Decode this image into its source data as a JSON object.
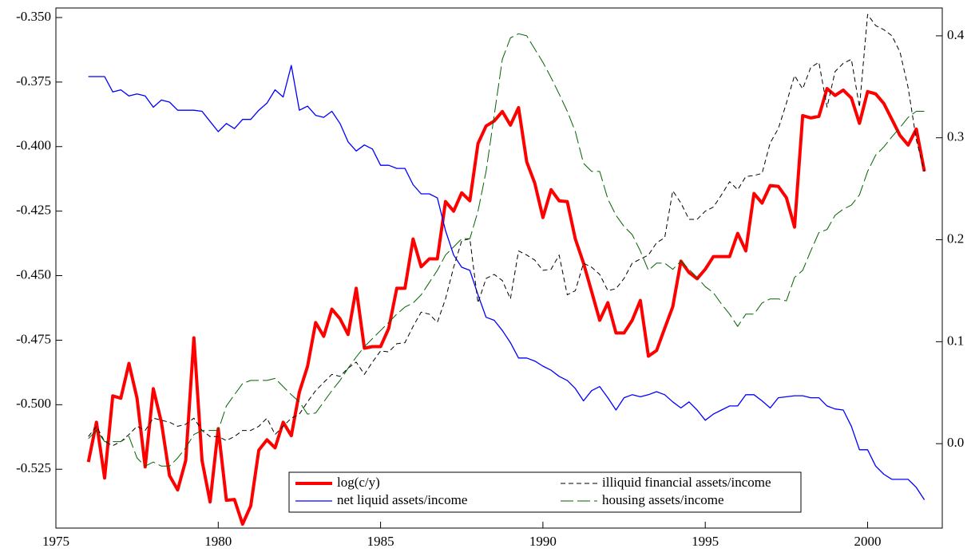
{
  "chart_data": {
    "type": "line",
    "x": [
      1976,
      1976.25,
      1976.5,
      1976.75,
      1977,
      1977.25,
      1977.5,
      1977.75,
      1978,
      1978.25,
      1978.5,
      1978.75,
      1979,
      1979.25,
      1979.5,
      1979.75,
      1980,
      1980.25,
      1980.5,
      1980.75,
      1981,
      1981.25,
      1981.5,
      1981.75,
      1982,
      1982.25,
      1982.5,
      1982.75,
      1983,
      1983.25,
      1983.5,
      1983.75,
      1984,
      1984.25,
      1984.5,
      1984.75,
      1985,
      1985.25,
      1985.5,
      1985.75,
      1986,
      1986.25,
      1986.5,
      1986.75,
      1987,
      1987.25,
      1987.5,
      1987.75,
      1988,
      1988.25,
      1988.5,
      1988.75,
      1989,
      1989.25,
      1989.5,
      1989.75,
      1990,
      1990.25,
      1990.5,
      1990.75,
      1991,
      1991.25,
      1991.5,
      1991.75,
      1992,
      1992.25,
      1992.5,
      1992.75,
      1993,
      1993.25,
      1993.5,
      1993.75,
      1994,
      1994.25,
      1994.5,
      1994.75,
      1995,
      1995.25,
      1995.5,
      1995.75,
      1996,
      1996.25,
      1996.5,
      1996.75,
      1997,
      1997.25,
      1997.5,
      1997.75,
      1998,
      1998.25,
      1998.5,
      1998.75,
      1999,
      1999.25,
      1999.5,
      1999.75,
      2000,
      2000.25,
      2000.5,
      2000.75,
      2001,
      2001.25,
      2001.5,
      2001.75
    ],
    "series": [
      {
        "name": "log(c/y)",
        "color": "#ff0000",
        "width": 4,
        "style": "solid",
        "axis": "y",
        "values": [
          -0.5222,
          -0.5068,
          -0.5284,
          -0.4966,
          -0.4975,
          -0.484,
          -0.4975,
          -0.5241,
          -0.4938,
          -0.5068,
          -0.5275,
          -0.533,
          -0.5216,
          -0.4741,
          -0.5216,
          -0.5377,
          -0.5093,
          -0.537,
          -0.5367,
          -0.5463,
          -0.5392,
          -0.5176,
          -0.5136,
          -0.5167,
          -0.5068,
          -0.512,
          -0.4951,
          -0.4852,
          -0.4682,
          -0.4735,
          -0.463,
          -0.4667,
          -0.4728,
          -0.4549,
          -0.4781,
          -0.4775,
          -0.4775,
          -0.4704,
          -0.4549,
          -0.4549,
          -0.4358,
          -0.4466,
          -0.4435,
          -0.4435,
          -0.4213,
          -0.425,
          -0.4179,
          -0.421,
          -0.3988,
          -0.392,
          -0.3901,
          -0.3864,
          -0.3917,
          -0.3849,
          -0.4059,
          -0.4142,
          -0.4275,
          -0.4167,
          -0.421,
          -0.4213,
          -0.4358,
          -0.4451,
          -0.4562,
          -0.4673,
          -0.4605,
          -0.4722,
          -0.4722,
          -0.4673,
          -0.4596,
          -0.4812,
          -0.479,
          -0.4704,
          -0.462,
          -0.4444,
          -0.4488,
          -0.4512,
          -0.4475,
          -0.4426,
          -0.4426,
          -0.4426,
          -0.4336,
          -0.4404,
          -0.4182,
          -0.4219,
          -0.4151,
          -0.4154,
          -0.4198,
          -0.4312,
          -0.388,
          -0.3889,
          -0.3883,
          -0.3775,
          -0.3802,
          -0.3781,
          -0.3812,
          -0.391,
          -0.3787,
          -0.3796,
          -0.3833,
          -0.3895,
          -0.3957,
          -0.3994,
          -0.3932,
          -0.4096
        ]
      },
      {
        "name": "net liquid assets/income",
        "color": "#0000ff",
        "width": 1.3,
        "style": "solid",
        "axis": "y2",
        "values": [
          0.36,
          0.36,
          0.36,
          0.345,
          0.347,
          0.341,
          0.343,
          0.341,
          0.33,
          0.337,
          0.335,
          0.327,
          0.327,
          0.327,
          0.326,
          0.316,
          0.306,
          0.314,
          0.309,
          0.318,
          0.318,
          0.327,
          0.334,
          0.347,
          0.34,
          0.371,
          0.327,
          0.331,
          0.322,
          0.32,
          0.326,
          0.314,
          0.296,
          0.287,
          0.293,
          0.289,
          0.273,
          0.273,
          0.27,
          0.27,
          0.254,
          0.245,
          0.245,
          0.241,
          0.209,
          0.185,
          0.173,
          0.17,
          0.146,
          0.124,
          0.121,
          0.111,
          0.099,
          0.084,
          0.084,
          0.081,
          0.076,
          0.072,
          0.066,
          0.062,
          0.054,
          0.042,
          0.052,
          0.056,
          0.045,
          0.033,
          0.045,
          0.048,
          0.046,
          0.048,
          0.051,
          0.048,
          0.041,
          0.035,
          0.041,
          0.033,
          0.023,
          0.029,
          0.033,
          0.037,
          0.037,
          0.048,
          0.048,
          0.042,
          0.035,
          0.045,
          0.046,
          0.047,
          0.047,
          0.045,
          0.045,
          0.037,
          0.034,
          0.033,
          0.017,
          -0.006,
          -0.006,
          -0.022,
          -0.03,
          -0.035,
          -0.035,
          -0.035,
          -0.043,
          -0.055
        ]
      },
      {
        "name": "illiquid financial assets/income",
        "color": "#000000",
        "width": 1,
        "style": "dashed",
        "axis": "y2",
        "values": [
          0.007,
          0.017,
          0.002,
          -0.002,
          0.002,
          0.009,
          0.017,
          0.013,
          0.025,
          0.023,
          0.021,
          0.017,
          0.019,
          0.025,
          0.013,
          0.007,
          0.007,
          0.003,
          0.007,
          0.013,
          0.013,
          0.017,
          0.025,
          0.009,
          0.017,
          0.025,
          0.029,
          0.041,
          0.052,
          0.06,
          0.068,
          0.066,
          0.074,
          0.08,
          0.068,
          0.08,
          0.091,
          0.09,
          0.098,
          0.099,
          0.115,
          0.129,
          0.127,
          0.119,
          0.142,
          0.173,
          0.199,
          0.201,
          0.138,
          0.162,
          0.166,
          0.16,
          0.142,
          0.189,
          0.185,
          0.18,
          0.17,
          0.171,
          0.185,
          0.146,
          0.15,
          0.177,
          0.173,
          0.166,
          0.15,
          0.152,
          0.162,
          0.177,
          0.181,
          0.185,
          0.197,
          0.202,
          0.248,
          0.236,
          0.22,
          0.22,
          0.228,
          0.232,
          0.244,
          0.257,
          0.249,
          0.262,
          0.263,
          0.265,
          0.295,
          0.309,
          0.334,
          0.361,
          0.348,
          0.369,
          0.374,
          0.33,
          0.365,
          0.373,
          0.377,
          0.33,
          0.421,
          0.41,
          0.406,
          0.4,
          0.384,
          0.349,
          0.298,
          0.267
        ]
      },
      {
        "name": "housing assets/income",
        "color": "#006400",
        "width": 1,
        "style": "longdash",
        "axis": "y2",
        "values": [
          0.005,
          0.013,
          0.002,
          0.002,
          0.002,
          0.007,
          -0.014,
          -0.022,
          -0.018,
          -0.022,
          -0.022,
          -0.014,
          -0.004,
          0.009,
          0.013,
          0.013,
          0.013,
          0.037,
          0.048,
          0.059,
          0.062,
          0.062,
          0.062,
          0.064,
          0.056,
          0.048,
          0.041,
          0.029,
          0.03,
          0.041,
          0.052,
          0.062,
          0.074,
          0.085,
          0.095,
          0.103,
          0.111,
          0.119,
          0.127,
          0.134,
          0.138,
          0.146,
          0.158,
          0.17,
          0.185,
          0.193,
          0.201,
          0.201,
          0.228,
          0.267,
          0.322,
          0.377,
          0.398,
          0.402,
          0.4,
          0.387,
          0.374,
          0.359,
          0.343,
          0.326,
          0.306,
          0.275,
          0.267,
          0.267,
          0.24,
          0.224,
          0.213,
          0.205,
          0.189,
          0.17,
          0.177,
          0.177,
          0.171,
          0.179,
          0.171,
          0.163,
          0.154,
          0.148,
          0.137,
          0.127,
          0.115,
          0.127,
          0.127,
          0.138,
          0.142,
          0.142,
          0.14,
          0.163,
          0.17,
          0.189,
          0.207,
          0.21,
          0.224,
          0.23,
          0.234,
          0.244,
          0.267,
          0.283,
          0.291,
          0.301,
          0.31,
          0.32,
          0.326,
          0.326
        ]
      }
    ],
    "xlim": [
      1975,
      2002.3
    ],
    "xticks": [
      1975,
      1980,
      1985,
      1990,
      1995,
      2000
    ],
    "ylim": [
      -0.5478,
      -0.3463
    ],
    "yticks": [
      {
        "value": -0.35,
        "label": "-0.350"
      },
      {
        "value": -0.375,
        "label": "-0.375"
      },
      {
        "value": -0.4,
        "label": "-0.400"
      },
      {
        "value": -0.425,
        "label": "-0.425"
      },
      {
        "value": -0.45,
        "label": "-0.450"
      },
      {
        "value": -0.475,
        "label": "-0.475"
      },
      {
        "value": -0.5,
        "label": "-0.500"
      },
      {
        "value": -0.525,
        "label": "-0.525"
      }
    ],
    "y2lim": [
      -0.0828,
      0.4273
    ],
    "y2ticks": [
      {
        "value": 0,
        "label": "0.0"
      },
      0.1,
      0.2,
      0.3,
      0.4
    ],
    "legend": "bottom"
  }
}
